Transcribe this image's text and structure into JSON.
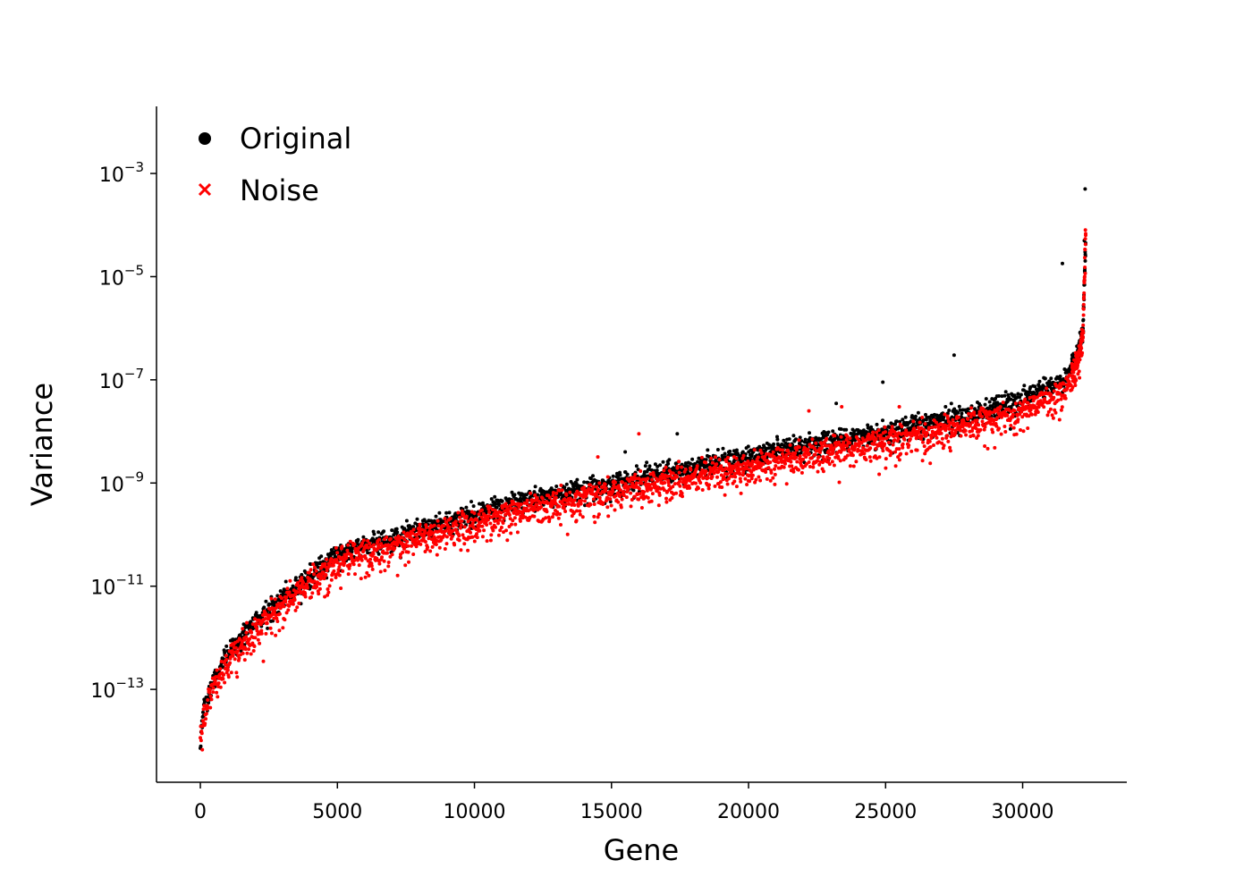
{
  "chart_data": {
    "type": "scatter",
    "xlabel": "Gene",
    "ylabel": "Variance",
    "yscale": "log",
    "xlim": [
      -1600,
      33800
    ],
    "ylim_log10": [
      -14.8,
      -1.7
    ],
    "xticks": [
      0,
      5000,
      10000,
      15000,
      20000,
      25000,
      30000
    ],
    "xtick_labels": [
      "0",
      "5000",
      "10000",
      "15000",
      "20000",
      "25000",
      "30000"
    ],
    "yticks_log10": [
      -3,
      -5,
      -7,
      -9,
      -11,
      -13
    ],
    "ytick_labels": [
      {
        "base": "10",
        "exp": "−3"
      },
      {
        "base": "10",
        "exp": "−5"
      },
      {
        "base": "10",
        "exp": "−7"
      },
      {
        "base": "10",
        "exp": "−9"
      },
      {
        "base": "10",
        "exp": "−11"
      },
      {
        "base": "10",
        "exp": "−13"
      }
    ],
    "grid": false,
    "legend": {
      "position": "top-left"
    },
    "series": [
      {
        "name": "Original",
        "marker": "circle",
        "color": "#000000",
        "trend": [
          {
            "x": 0,
            "y": 1e-14
          },
          {
            "x": 100,
            "y": 5e-14
          },
          {
            "x": 500,
            "y": 2e-13
          },
          {
            "x": 1000,
            "y": 6e-13
          },
          {
            "x": 2000,
            "y": 2.5e-12
          },
          {
            "x": 3000,
            "y": 7e-12
          },
          {
            "x": 4000,
            "y": 2e-11
          },
          {
            "x": 5000,
            "y": 5e-11
          },
          {
            "x": 6000,
            "y": 8e-11
          },
          {
            "x": 8000,
            "y": 1.5e-10
          },
          {
            "x": 10000,
            "y": 3e-10
          },
          {
            "x": 12000,
            "y": 6e-10
          },
          {
            "x": 15000,
            "y": 1.2e-09
          },
          {
            "x": 18000,
            "y": 2.5e-09
          },
          {
            "x": 20000,
            "y": 4e-09
          },
          {
            "x": 25000,
            "y": 1.2e-08
          },
          {
            "x": 28000,
            "y": 2.5e-08
          },
          {
            "x": 30000,
            "y": 5e-08
          },
          {
            "x": 31500,
            "y": 1.2e-07
          },
          {
            "x": 32000,
            "y": 3e-07
          },
          {
            "x": 32200,
            "y": 1e-06
          },
          {
            "x": 32300,
            "y": 5e-05
          }
        ],
        "outliers": [
          {
            "x": 32280,
            "y": 0.0005
          },
          {
            "x": 31450,
            "y": 1.8e-05
          },
          {
            "x": 27500,
            "y": 3e-07
          },
          {
            "x": 24900,
            "y": 9e-08
          },
          {
            "x": 23200,
            "y": 3.5e-08
          },
          {
            "x": 17400,
            "y": 9e-09
          },
          {
            "x": 15500,
            "y": 4e-09
          },
          {
            "x": 32250,
            "y": 5e-05
          }
        ]
      },
      {
        "name": "Noise",
        "marker": "x",
        "color": "#ff0000",
        "trend": [
          {
            "x": 0,
            "y": 1e-14
          },
          {
            "x": 100,
            "y": 4e-14
          },
          {
            "x": 500,
            "y": 1.7e-13
          },
          {
            "x": 1000,
            "y": 5e-13
          },
          {
            "x": 2000,
            "y": 2e-12
          },
          {
            "x": 3000,
            "y": 6e-12
          },
          {
            "x": 4000,
            "y": 1.6e-11
          },
          {
            "x": 5000,
            "y": 4e-11
          },
          {
            "x": 6000,
            "y": 6.5e-11
          },
          {
            "x": 8000,
            "y": 1.2e-10
          },
          {
            "x": 10000,
            "y": 2.4e-10
          },
          {
            "x": 12000,
            "y": 4.5e-10
          },
          {
            "x": 15000,
            "y": 9e-10
          },
          {
            "x": 18000,
            "y": 2e-09
          },
          {
            "x": 20000,
            "y": 3e-09
          },
          {
            "x": 25000,
            "y": 9e-09
          },
          {
            "x": 28000,
            "y": 2e-08
          },
          {
            "x": 30000,
            "y": 3.5e-08
          },
          {
            "x": 31500,
            "y": 9e-08
          },
          {
            "x": 32000,
            "y": 2.2e-07
          },
          {
            "x": 32200,
            "y": 8e-07
          },
          {
            "x": 32300,
            "y": 8e-05
          }
        ],
        "outliers": [
          {
            "x": 32290,
            "y": 8e-05
          },
          {
            "x": 22200,
            "y": 2.5e-08
          },
          {
            "x": 23400,
            "y": 3e-08
          },
          {
            "x": 16000,
            "y": 9e-09
          },
          {
            "x": 14500,
            "y": 3.2e-09
          },
          {
            "x": 2300,
            "y": 3.5e-13
          },
          {
            "x": 25500,
            "y": 3e-08
          }
        ]
      }
    ]
  }
}
